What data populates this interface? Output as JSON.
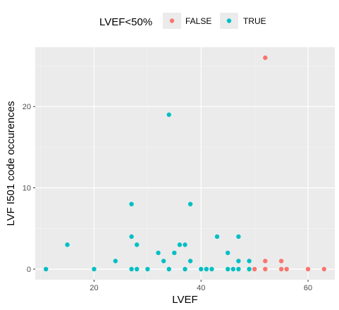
{
  "chart_data": {
    "type": "scatter",
    "title": "",
    "xlabel": "LVEF",
    "ylabel": "LVF I501 code occurences",
    "xlim": [
      9,
      65
    ],
    "ylim": [
      -1.3,
      27.3
    ],
    "x_ticks": [
      20,
      40,
      60
    ],
    "y_ticks": [
      0,
      10,
      20
    ],
    "grid": true,
    "legend": {
      "title": "LVEF<50%",
      "position": "top",
      "entries": [
        {
          "label": "FALSE",
          "color": "#F8766D"
        },
        {
          "label": "TRUE",
          "color": "#00BFC4"
        }
      ]
    },
    "series": [
      {
        "name": "TRUE",
        "color": "#00BFC4",
        "points": [
          [
            11,
            0
          ],
          [
            15,
            3
          ],
          [
            20,
            0
          ],
          [
            24,
            1
          ],
          [
            27,
            8
          ],
          [
            27,
            4
          ],
          [
            27,
            0
          ],
          [
            28,
            3
          ],
          [
            28,
            0
          ],
          [
            30,
            0
          ],
          [
            32,
            2
          ],
          [
            33,
            1
          ],
          [
            34,
            19
          ],
          [
            34,
            0
          ],
          [
            35,
            2
          ],
          [
            36,
            3
          ],
          [
            37,
            3
          ],
          [
            37,
            0
          ],
          [
            38,
            8
          ],
          [
            38,
            1
          ],
          [
            40,
            0
          ],
          [
            41,
            0
          ],
          [
            42,
            0
          ],
          [
            43,
            4
          ],
          [
            45,
            2
          ],
          [
            45,
            0
          ],
          [
            46,
            0
          ],
          [
            47,
            4
          ],
          [
            47,
            1
          ],
          [
            47,
            0
          ],
          [
            49,
            1
          ],
          [
            49,
            0
          ]
        ]
      },
      {
        "name": "FALSE",
        "color": "#F8766D",
        "points": [
          [
            50,
            0
          ],
          [
            52,
            26
          ],
          [
            52,
            1
          ],
          [
            52,
            0
          ],
          [
            55,
            1
          ],
          [
            55,
            0
          ],
          [
            56,
            0
          ],
          [
            60,
            0
          ],
          [
            63,
            0
          ]
        ]
      }
    ]
  }
}
